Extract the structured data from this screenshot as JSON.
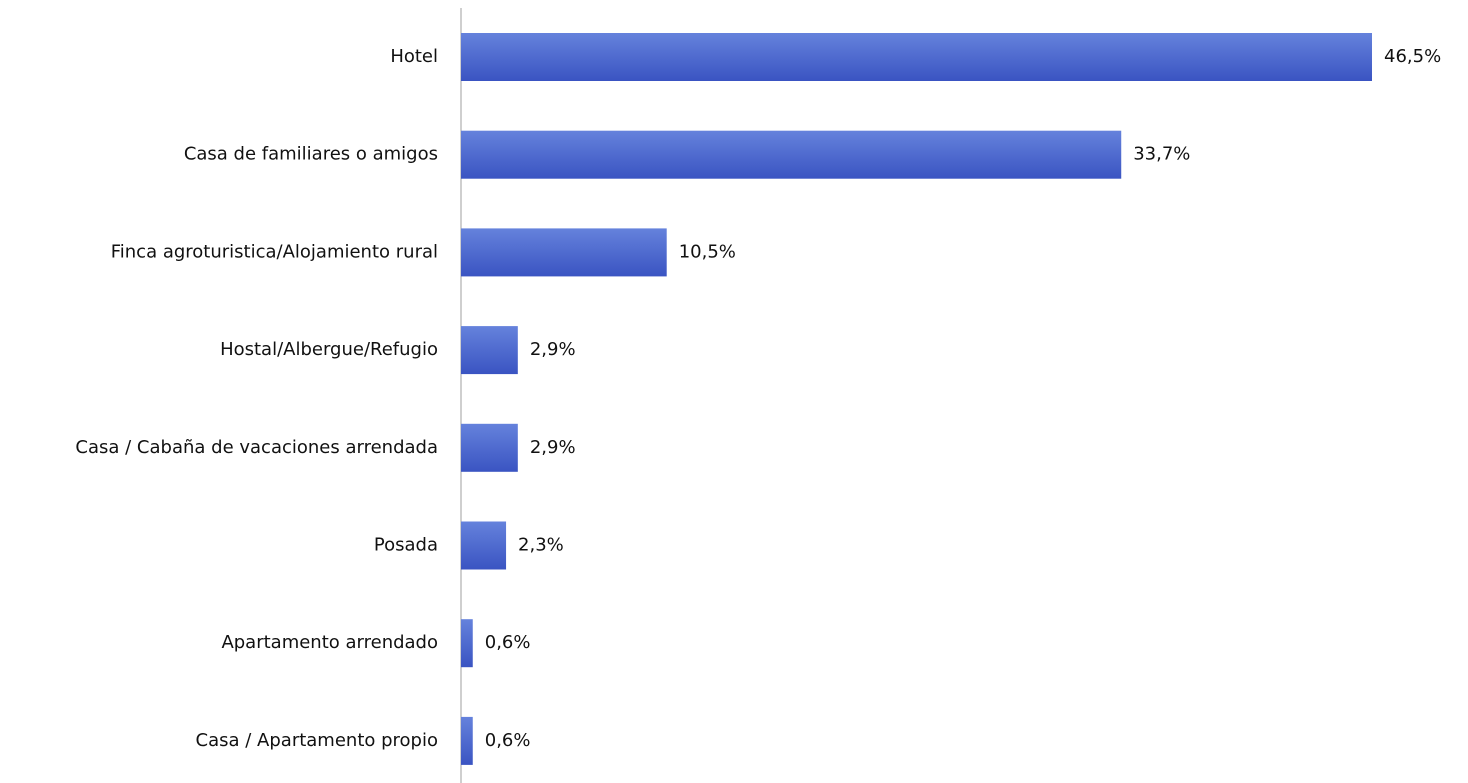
{
  "chart_data": {
    "type": "bar",
    "orientation": "horizontal",
    "categories": [
      "Hotel",
      "Casa de familiares o amigos",
      "Finca agroturistica/Alojamiento rural",
      "Hostal/Albergue/Refugio",
      "Casa / Cabaña de vacaciones arrendada",
      "Posada",
      "Apartamento arrendado",
      "Casa / Apartamento propio"
    ],
    "values": [
      46.5,
      33.7,
      10.5,
      2.9,
      2.9,
      2.3,
      0.6,
      0.6
    ],
    "value_labels": [
      "46,5%",
      "33,7%",
      "10,5%",
      "2,9%",
      "2,9%",
      "2,3%",
      "0,6%",
      "0,6%"
    ],
    "color": "#4460cc"
  }
}
